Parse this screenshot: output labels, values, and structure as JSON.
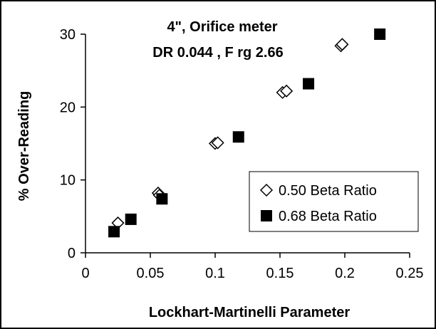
{
  "chart_data": {
    "type": "scatter",
    "title": "4\", Orifice meter",
    "subtitle": "DR  0.044 , F rg  2.66",
    "xlabel": "Lockhart-Martinelli Parameter",
    "ylabel": "% Over-Reading",
    "xlim": [
      0,
      0.25
    ],
    "ylim": [
      0,
      30
    ],
    "xticks": [
      "0",
      "0.05",
      "0.1",
      "0.15",
      "0.2",
      "0.25"
    ],
    "yticks": [
      "0",
      "10",
      "20",
      "30"
    ],
    "xtick_values": [
      0,
      0.05,
      0.1,
      0.15,
      0.2,
      0.25
    ],
    "ytick_values": [
      0,
      10,
      20,
      30
    ],
    "grid": false,
    "legend_position": "right-middle",
    "series": [
      {
        "name": "0.50 Beta Ratio",
        "marker": "open-diamond",
        "color": "#000000",
        "points": [
          {
            "x": 0.025,
            "y": 4.1
          },
          {
            "x": 0.056,
            "y": 8.2
          },
          {
            "x": 0.057,
            "y": 7.9
          },
          {
            "x": 0.1,
            "y": 15.0
          },
          {
            "x": 0.102,
            "y": 15.1
          },
          {
            "x": 0.152,
            "y": 22.0
          },
          {
            "x": 0.155,
            "y": 22.2
          },
          {
            "x": 0.197,
            "y": 28.4
          },
          {
            "x": 0.198,
            "y": 28.6
          }
        ]
      },
      {
        "name": "0.68 Beta Ratio",
        "marker": "filled-square",
        "color": "#000000",
        "points": [
          {
            "x": 0.022,
            "y": 2.9
          },
          {
            "x": 0.035,
            "y": 4.6
          },
          {
            "x": 0.059,
            "y": 7.4
          },
          {
            "x": 0.118,
            "y": 15.9
          },
          {
            "x": 0.172,
            "y": 23.2
          },
          {
            "x": 0.227,
            "y": 30.0
          }
        ]
      }
    ]
  }
}
